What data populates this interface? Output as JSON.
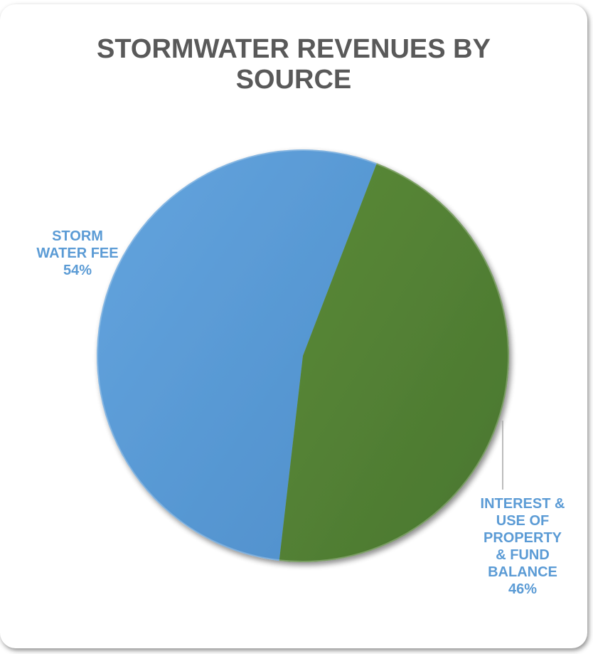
{
  "chart_data": {
    "type": "pie",
    "title_lines": [
      "STORMWATER REVENUES BY",
      "SOURCE"
    ],
    "slices": [
      {
        "label_lines": [
          "STORM",
          "WATER FEE"
        ],
        "percent_label": "54%",
        "value": 54,
        "color": "#5B9BD5"
      },
      {
        "label_lines": [
          "INTEREST &",
          "USE OF",
          "PROPERTY",
          "& FUND",
          "BALANCE"
        ],
        "percent_label": "46%",
        "value": 46,
        "color": "#548235"
      }
    ],
    "label_color": "#5B9BD5",
    "legend": "none"
  }
}
